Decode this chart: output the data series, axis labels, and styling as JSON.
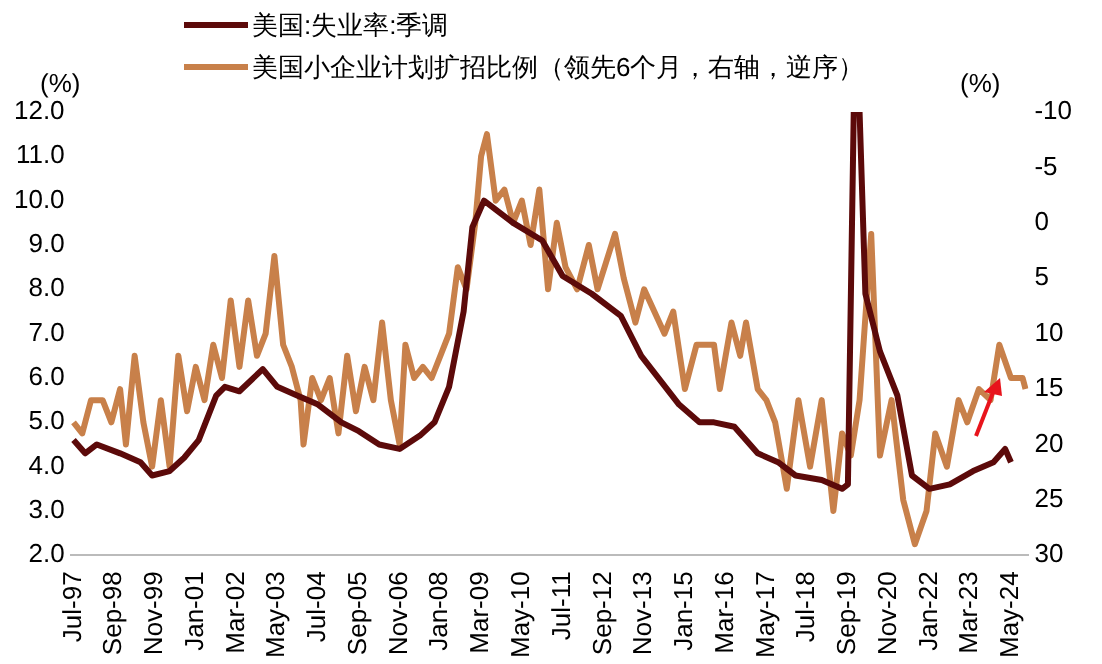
{
  "chart_data": {
    "type": "line",
    "ylabel": "(%)",
    "y2label": "(%)",
    "legend": "top",
    "marker": "none",
    "xlim": [
      "1997-06",
      "2024-11"
    ],
    "xticks": [
      {
        "value": "1997-07",
        "label": "Jul-97"
      },
      {
        "value": "1998-09",
        "label": "Sep-98"
      },
      {
        "value": "1999-11",
        "label": "Nov-99"
      },
      {
        "value": "2001-01",
        "label": "Jan-01"
      },
      {
        "value": "2002-03",
        "label": "Mar-02"
      },
      {
        "value": "2003-05",
        "label": "May-03"
      },
      {
        "value": "2004-07",
        "label": "Jul-04"
      },
      {
        "value": "2005-09",
        "label": "Sep-05"
      },
      {
        "value": "2006-11",
        "label": "Nov-06"
      },
      {
        "value": "2008-01",
        "label": "Jan-08"
      },
      {
        "value": "2009-03",
        "label": "Mar-09"
      },
      {
        "value": "2010-05",
        "label": "May-10"
      },
      {
        "value": "2011-07",
        "label": "Jul-11"
      },
      {
        "value": "2012-09",
        "label": "Sep-12"
      },
      {
        "value": "2013-11",
        "label": "Nov-13"
      },
      {
        "value": "2015-01",
        "label": "Jan-15"
      },
      {
        "value": "2016-03",
        "label": "Mar-16"
      },
      {
        "value": "2017-05",
        "label": "May-17"
      },
      {
        "value": "2018-07",
        "label": "Jul-18"
      },
      {
        "value": "2019-09",
        "label": "Sep-19"
      },
      {
        "value": "2020-11",
        "label": "Nov-20"
      },
      {
        "value": "2022-01",
        "label": "Jan-22"
      },
      {
        "value": "2023-03",
        "label": "Mar-23"
      },
      {
        "value": "2024-05",
        "label": "May-24"
      }
    ],
    "ylim": [
      2,
      12
    ],
    "yticks": [
      {
        "value": 2,
        "label": "2.0"
      },
      {
        "value": 3,
        "label": "3.0"
      },
      {
        "value": 4,
        "label": "4.0"
      },
      {
        "value": 5,
        "label": "5.0"
      },
      {
        "value": 6,
        "label": "6.0"
      },
      {
        "value": 7,
        "label": "7.0"
      },
      {
        "value": 8,
        "label": "8.0"
      },
      {
        "value": 9,
        "label": "9.0"
      },
      {
        "value": 10,
        "label": "10.0"
      },
      {
        "value": 11,
        "label": "11.0"
      },
      {
        "value": 12,
        "label": "12.0"
      }
    ],
    "y2lim": [
      30,
      -10
    ],
    "y2ticks": [
      -10,
      -5,
      0,
      5,
      10,
      15,
      20,
      25,
      30
    ],
    "series": [
      {
        "name": "美国:失业率:季调",
        "color": "#5c0a0a",
        "x": [
          "1997-07",
          "1997-11",
          "1998-03",
          "1998-11",
          "1999-06",
          "1999-10",
          "2000-04",
          "2000-09",
          "2001-02",
          "2001-08",
          "2001-11",
          "2002-04",
          "2002-12",
          "2003-05",
          "2003-12",
          "2004-07",
          "2005-03",
          "2005-09",
          "2006-04",
          "2006-11",
          "2007-06",
          "2007-11",
          "2008-04",
          "2008-09",
          "2008-12",
          "2009-04",
          "2010-02",
          "2010-12",
          "2011-07",
          "2012-05",
          "2013-03",
          "2013-10",
          "2014-11",
          "2015-06",
          "2015-11",
          "2016-06",
          "2017-02",
          "2017-09",
          "2018-03",
          "2018-12",
          "2019-07",
          "2019-09",
          "2019-11",
          "2020-01",
          "2020-03",
          "2020-08",
          "2021-02",
          "2021-07",
          "2022-01",
          "2022-08",
          "2023-04",
          "2023-11",
          "2024-03",
          "2024-05"
        ],
        "values": [
          4.6,
          4.3,
          4.5,
          4.3,
          4.1,
          3.8,
          3.9,
          4.2,
          4.6,
          5.6,
          5.8,
          5.7,
          6.2,
          5.8,
          5.6,
          5.4,
          5.0,
          4.8,
          4.5,
          4.4,
          4.7,
          5.0,
          5.8,
          7.5,
          9.4,
          10.0,
          9.5,
          9.1,
          8.3,
          7.9,
          7.4,
          6.5,
          5.4,
          5.0,
          5.0,
          4.9,
          4.3,
          4.1,
          3.8,
          3.7,
          3.5,
          3.6,
          12.0,
          12.0,
          7.9,
          6.6,
          5.6,
          3.8,
          3.5,
          3.6,
          3.9,
          4.1,
          4.4,
          4.1
        ]
      },
      {
        "name": "美国小企业计划扩招比例（领先6个月，右轴，逆序）",
        "color": "#c8804a",
        "axis": "y2",
        "x": [
          "1997-07",
          "1997-10",
          "1998-01",
          "1998-05",
          "1998-08",
          "1998-11",
          "1999-01",
          "1999-04",
          "1999-07",
          "1999-10",
          "2000-01",
          "2000-04",
          "2000-07",
          "2000-10",
          "2001-01",
          "2001-04",
          "2001-07",
          "2001-10",
          "2002-01",
          "2002-04",
          "2002-07",
          "2002-10",
          "2003-01",
          "2003-04",
          "2003-07",
          "2003-10",
          "2004-01",
          "2004-02",
          "2004-05",
          "2004-08",
          "2004-11",
          "2005-02",
          "2005-05",
          "2005-08",
          "2005-11",
          "2006-02",
          "2006-05",
          "2006-08",
          "2006-11",
          "2007-01",
          "2007-04",
          "2007-07",
          "2007-10",
          "2008-01",
          "2008-04",
          "2008-07",
          "2008-10",
          "2009-01",
          "2009-03",
          "2009-05",
          "2009-08",
          "2009-11",
          "2010-02",
          "2010-05",
          "2010-08",
          "2010-11",
          "2011-02",
          "2011-05",
          "2011-08",
          "2011-12",
          "2012-04",
          "2012-07",
          "2013-01",
          "2013-04",
          "2013-08",
          "2013-11",
          "2014-06",
          "2014-09",
          "2015-01",
          "2015-05",
          "2015-11",
          "2016-01",
          "2016-05",
          "2016-08",
          "2016-10",
          "2017-02",
          "2017-05",
          "2017-08",
          "2017-12",
          "2018-04",
          "2018-08",
          "2018-12",
          "2019-04",
          "2019-07",
          "2019-10",
          "2020-01",
          "2020-05",
          "2020-08",
          "2020-12",
          "2021-04",
          "2021-08",
          "2021-12",
          "2022-03",
          "2022-07",
          "2022-11",
          "2023-02",
          "2023-06",
          "2023-10",
          "2024-01",
          "2024-05",
          "2024-09",
          "2024-10"
        ],
        "values": [
          18,
          19,
          16,
          16,
          18,
          15,
          20,
          12,
          18,
          22,
          16,
          22,
          12,
          17,
          13,
          16,
          11,
          14,
          7,
          13,
          7,
          12,
          10,
          3,
          11,
          13,
          16,
          20,
          14,
          16,
          14,
          19,
          12,
          17,
          13,
          16,
          9,
          16,
          20,
          11,
          14,
          13,
          14,
          12,
          10,
          4,
          6,
          0,
          -6,
          -8,
          -2,
          -3,
          0,
          -2,
          2,
          -3,
          6,
          0,
          4,
          6,
          2,
          6,
          1,
          5,
          9,
          6,
          10,
          8,
          15,
          11,
          11,
          15,
          9,
          12,
          9,
          15,
          16,
          18,
          24,
          16,
          22,
          16,
          26,
          19,
          21,
          16,
          1,
          21,
          16,
          25,
          29,
          26,
          19,
          22,
          16,
          18,
          15,
          16,
          11,
          14,
          14,
          15
        ]
      }
    ]
  }
}
